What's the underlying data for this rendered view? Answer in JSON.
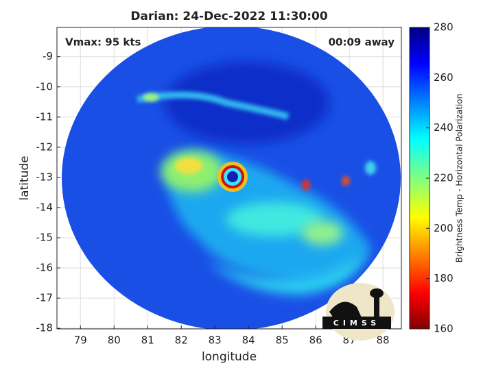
{
  "chart_data": {
    "type": "image",
    "title": "Darian: 24-Dec-2022 11:30:00",
    "xlabel": "longitude",
    "ylabel": "latitude",
    "xlim": [
      78.3,
      88.55
    ],
    "xticks": [
      79,
      80,
      81,
      82,
      83,
      84,
      85,
      86,
      87,
      88
    ],
    "ylim": [
      -18.02,
      -8.03
    ],
    "yticks": [
      -9,
      -10,
      -11,
      -12,
      -13,
      -14,
      -15,
      -16,
      -17,
      -18
    ],
    "grid": true,
    "annotations": [
      "Vmax: 95 kts",
      "00:09 away"
    ],
    "colorbar": {
      "label": "Brightness Temp - Horizontal Polarization",
      "lim": [
        160,
        280
      ],
      "ticks": [
        160,
        180,
        200,
        220,
        240,
        260,
        280
      ]
    },
    "logo": "CIMSS"
  }
}
